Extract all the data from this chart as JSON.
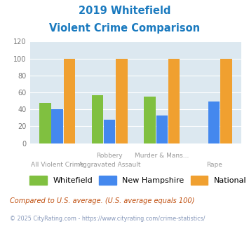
{
  "title_line1": "2019 Whitefield",
  "title_line2": "Violent Crime Comparison",
  "title_color": "#1a7abf",
  "groups": [
    {
      "whitefield": 48,
      "nh": 40,
      "national": 100
    },
    {
      "whitefield": 57,
      "nh": 28,
      "national": 100
    },
    {
      "whitefield": 55,
      "nh": 33,
      "national": 100
    },
    {
      "whitefield": 0,
      "nh": 49,
      "national": 100
    }
  ],
  "xtick_row1": [
    "",
    "Robbery",
    "Murder & Mans...",
    ""
  ],
  "xtick_row2": [
    "All Violent Crime",
    "Aggravated Assault",
    "",
    "Rape"
  ],
  "whitefield_color": "#80c040",
  "nh_color": "#4488ee",
  "national_color": "#f0a030",
  "bg_color": "#dce8f0",
  "ylim": [
    0,
    120
  ],
  "yticks": [
    0,
    20,
    40,
    60,
    80,
    100,
    120
  ],
  "legend_labels": [
    "Whitefield",
    "New Hampshire",
    "National"
  ],
  "footnote1": "Compared to U.S. average. (U.S. average equals 100)",
  "footnote2": "© 2025 CityRating.com - https://www.cityrating.com/crime-statistics/",
  "footnote1_color": "#c05010",
  "footnote2_color": "#8899bb",
  "title_fontsize": 10.5,
  "xtick_fontsize": 6.5,
  "ytick_fontsize": 7,
  "legend_fontsize": 8,
  "footnote1_fontsize": 7,
  "footnote2_fontsize": 5.8
}
